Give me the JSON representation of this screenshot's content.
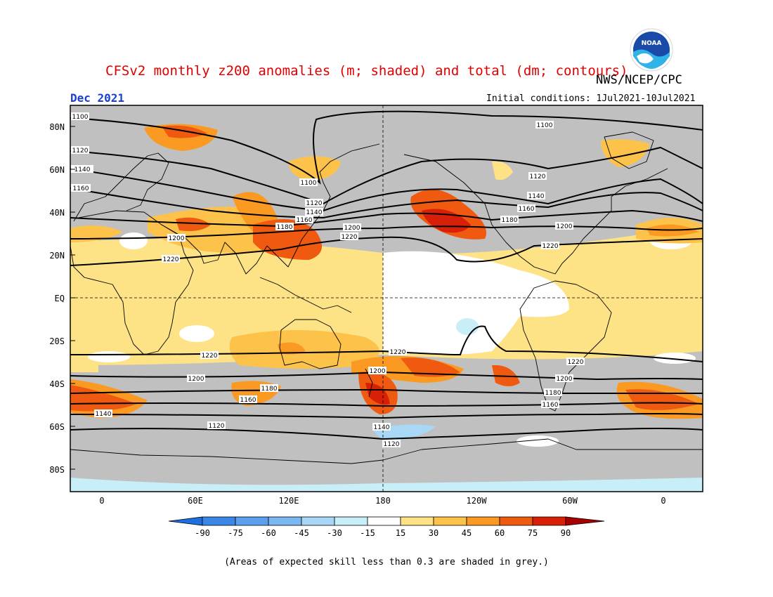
{
  "header": {
    "title": "CFSv2 monthly z200 anomalies (m; shaded) and total (dm; contours)",
    "agency": "NWS/NCEP/CPC",
    "month": "Dec 2021",
    "initial_conditions": "Initial conditions: 1Jul2021-10Jul2021",
    "logo_text": "NOAA"
  },
  "map": {
    "lat_labels": [
      "80N",
      "60N",
      "40N",
      "20N",
      "EQ",
      "20S",
      "40S",
      "60S",
      "80S"
    ],
    "lon_labels": [
      "0",
      "60E",
      "120E",
      "180",
      "120W",
      "60W",
      "0"
    ],
    "contour_labels": [
      "1100",
      "1120",
      "1140",
      "1160",
      "1180",
      "1200",
      "1220"
    ]
  },
  "colorbar": {
    "ticks": [
      "-90",
      "-75",
      "-60",
      "-45",
      "-30",
      "-15",
      "15",
      "30",
      "45",
      "60",
      "75",
      "90"
    ],
    "colors": [
      "#1e6fe0",
      "#3a87e8",
      "#5aa0ee",
      "#7ab8f2",
      "#a8d8f5",
      "#c8eef8",
      "#ffffff",
      "#fde386",
      "#fdc24a",
      "#fb9a22",
      "#f05a10",
      "#d82008",
      "#a80000"
    ]
  },
  "footnote": "(Areas of expected skill less than 0.3 are shaded in grey.)"
}
